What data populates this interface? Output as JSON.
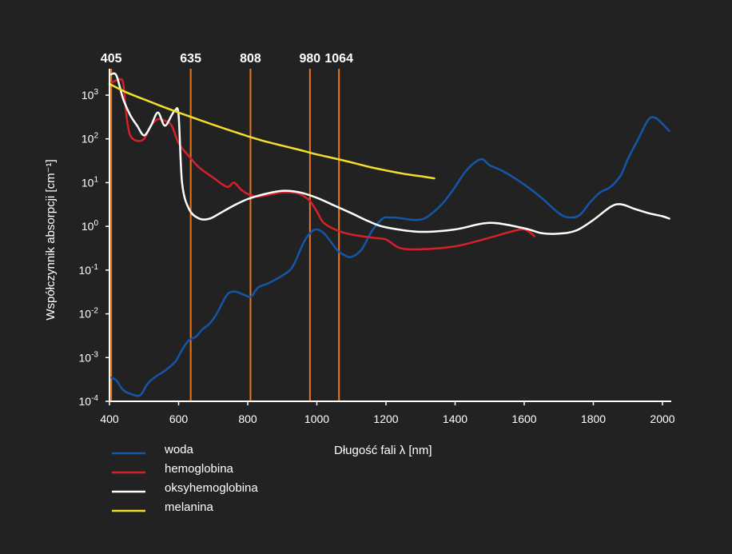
{
  "chart_data": {
    "type": "line",
    "title": "",
    "xlabel": "Długość fali λ [nm]",
    "ylabel": "Współczynnik absorpcji [cm⁻¹]",
    "xlim": [
      400,
      2000
    ],
    "ylim": [
      0.0001,
      5000
    ],
    "yscale": "log",
    "grid": false,
    "legend_position": "bottom-left",
    "x_ticks": [
      400,
      600,
      800,
      1000,
      1200,
      1400,
      1600,
      1800,
      2000
    ],
    "y_ticks": [
      {
        "value": 0.0001,
        "base": "10",
        "exp": "-4"
      },
      {
        "value": 0.001,
        "base": "10",
        "exp": "-3"
      },
      {
        "value": 0.01,
        "base": "10",
        "exp": "-2"
      },
      {
        "value": 0.1,
        "base": "10",
        "exp": "-1"
      },
      {
        "value": 1,
        "base": "10",
        "exp": "0"
      },
      {
        "value": 10,
        "base": "10",
        "exp": "1"
      },
      {
        "value": 100,
        "base": "10",
        "exp": "2"
      },
      {
        "value": 1000,
        "base": "10",
        "exp": "3"
      }
    ],
    "markers": [
      {
        "x": 405,
        "label": "405"
      },
      {
        "x": 635,
        "label": "635"
      },
      {
        "x": 808,
        "label": "808"
      },
      {
        "x": 980,
        "label": "980"
      },
      {
        "x": 1064,
        "label": "1064"
      }
    ],
    "marker_color": "#e87722",
    "series": [
      {
        "name": "woda",
        "color": "#1456a8",
        "points": [
          [
            405,
            0.00035
          ],
          [
            420,
            0.0003
          ],
          [
            440,
            0.00018
          ],
          [
            470,
            0.00014
          ],
          [
            490,
            0.00014
          ],
          [
            510,
            0.00025
          ],
          [
            530,
            0.00035
          ],
          [
            560,
            0.0005
          ],
          [
            590,
            0.0008
          ],
          [
            610,
            0.0015
          ],
          [
            630,
            0.0025
          ],
          [
            650,
            0.003
          ],
          [
            670,
            0.0045
          ],
          [
            690,
            0.006
          ],
          [
            710,
            0.01
          ],
          [
            730,
            0.02
          ],
          [
            745,
            0.03
          ],
          [
            765,
            0.032
          ],
          [
            790,
            0.027
          ],
          [
            810,
            0.025
          ],
          [
            830,
            0.04
          ],
          [
            860,
            0.05
          ],
          [
            900,
            0.075
          ],
          [
            930,
            0.12
          ],
          [
            960,
            0.4
          ],
          [
            980,
            0.7
          ],
          [
            1000,
            0.85
          ],
          [
            1020,
            0.7
          ],
          [
            1040,
            0.45
          ],
          [
            1060,
            0.28
          ],
          [
            1080,
            0.22
          ],
          [
            1100,
            0.2
          ],
          [
            1130,
            0.3
          ],
          [
            1160,
            0.8
          ],
          [
            1190,
            1.5
          ],
          [
            1210,
            1.6
          ],
          [
            1240,
            1.55
          ],
          [
            1280,
            1.4
          ],
          [
            1310,
            1.5
          ],
          [
            1340,
            2.2
          ],
          [
            1370,
            3.8
          ],
          [
            1400,
            8
          ],
          [
            1430,
            18
          ],
          [
            1460,
            30
          ],
          [
            1480,
            34
          ],
          [
            1500,
            25
          ],
          [
            1540,
            18
          ],
          [
            1600,
            9
          ],
          [
            1650,
            4.5
          ],
          [
            1700,
            2
          ],
          [
            1730,
            1.6
          ],
          [
            1760,
            1.8
          ],
          [
            1790,
            3.5
          ],
          [
            1820,
            6
          ],
          [
            1850,
            8
          ],
          [
            1880,
            15
          ],
          [
            1900,
            35
          ],
          [
            1930,
            100
          ],
          [
            1960,
            280
          ],
          [
            1980,
            300
          ],
          [
            2000,
            220
          ],
          [
            2020,
            150
          ]
        ]
      },
      {
        "name": "hemoglobina",
        "color": "#d6202a",
        "points": [
          [
            405,
            1900
          ],
          [
            420,
            2200
          ],
          [
            430,
            2300
          ],
          [
            440,
            1800
          ],
          [
            450,
            300
          ],
          [
            460,
            120
          ],
          [
            480,
            90
          ],
          [
            500,
            100
          ],
          [
            520,
            200
          ],
          [
            540,
            280
          ],
          [
            560,
            260
          ],
          [
            580,
            200
          ],
          [
            600,
            80
          ],
          [
            630,
            40
          ],
          [
            660,
            22
          ],
          [
            700,
            13
          ],
          [
            740,
            8
          ],
          [
            760,
            10
          ],
          [
            780,
            7
          ],
          [
            800,
            5.5
          ],
          [
            830,
            4.8
          ],
          [
            870,
            5.5
          ],
          [
            900,
            6
          ],
          [
            940,
            5.8
          ],
          [
            960,
            5
          ],
          [
            980,
            3.8
          ],
          [
            1000,
            2.2
          ],
          [
            1020,
            1.2
          ],
          [
            1060,
            0.8
          ],
          [
            1100,
            0.65
          ],
          [
            1160,
            0.55
          ],
          [
            1200,
            0.5
          ],
          [
            1240,
            0.32
          ],
          [
            1300,
            0.3
          ],
          [
            1400,
            0.35
          ],
          [
            1500,
            0.55
          ],
          [
            1560,
            0.75
          ],
          [
            1600,
            0.85
          ],
          [
            1630,
            0.6
          ]
        ]
      },
      {
        "name": "oksyhemoglobina",
        "color": "#ffffff",
        "points": [
          [
            405,
            3000
          ],
          [
            420,
            2800
          ],
          [
            440,
            800
          ],
          [
            460,
            350
          ],
          [
            480,
            200
          ],
          [
            500,
            120
          ],
          [
            520,
            200
          ],
          [
            540,
            400
          ],
          [
            560,
            200
          ],
          [
            580,
            350
          ],
          [
            590,
            450
          ],
          [
            600,
            350
          ],
          [
            610,
            10
          ],
          [
            630,
            2.5
          ],
          [
            660,
            1.5
          ],
          [
            690,
            1.5
          ],
          [
            720,
            2
          ],
          [
            760,
            3
          ],
          [
            800,
            4.2
          ],
          [
            850,
            5.5
          ],
          [
            900,
            6.5
          ],
          [
            950,
            6
          ],
          [
            1000,
            4.5
          ],
          [
            1050,
            3
          ],
          [
            1100,
            2
          ],
          [
            1150,
            1.3
          ],
          [
            1200,
            0.95
          ],
          [
            1300,
            0.75
          ],
          [
            1400,
            0.85
          ],
          [
            1500,
            1.2
          ],
          [
            1600,
            0.9
          ],
          [
            1650,
            0.7
          ],
          [
            1700,
            0.68
          ],
          [
            1750,
            0.8
          ],
          [
            1800,
            1.4
          ],
          [
            1850,
            2.8
          ],
          [
            1880,
            3.2
          ],
          [
            1920,
            2.5
          ],
          [
            1960,
            2
          ],
          [
            2000,
            1.7
          ],
          [
            2020,
            1.5
          ]
        ]
      },
      {
        "name": "melanina",
        "color": "#f2de2c",
        "points": [
          [
            400,
            1800
          ],
          [
            450,
            1150
          ],
          [
            500,
            800
          ],
          [
            550,
            560
          ],
          [
            600,
            400
          ],
          [
            650,
            290
          ],
          [
            700,
            210
          ],
          [
            750,
            155
          ],
          [
            800,
            115
          ],
          [
            850,
            88
          ],
          [
            900,
            70
          ],
          [
            950,
            56
          ],
          [
            1000,
            44
          ],
          [
            1050,
            36
          ],
          [
            1100,
            29
          ],
          [
            1150,
            23
          ],
          [
            1200,
            19
          ],
          [
            1250,
            16
          ],
          [
            1300,
            14
          ],
          [
            1340,
            12.5
          ]
        ]
      }
    ]
  }
}
